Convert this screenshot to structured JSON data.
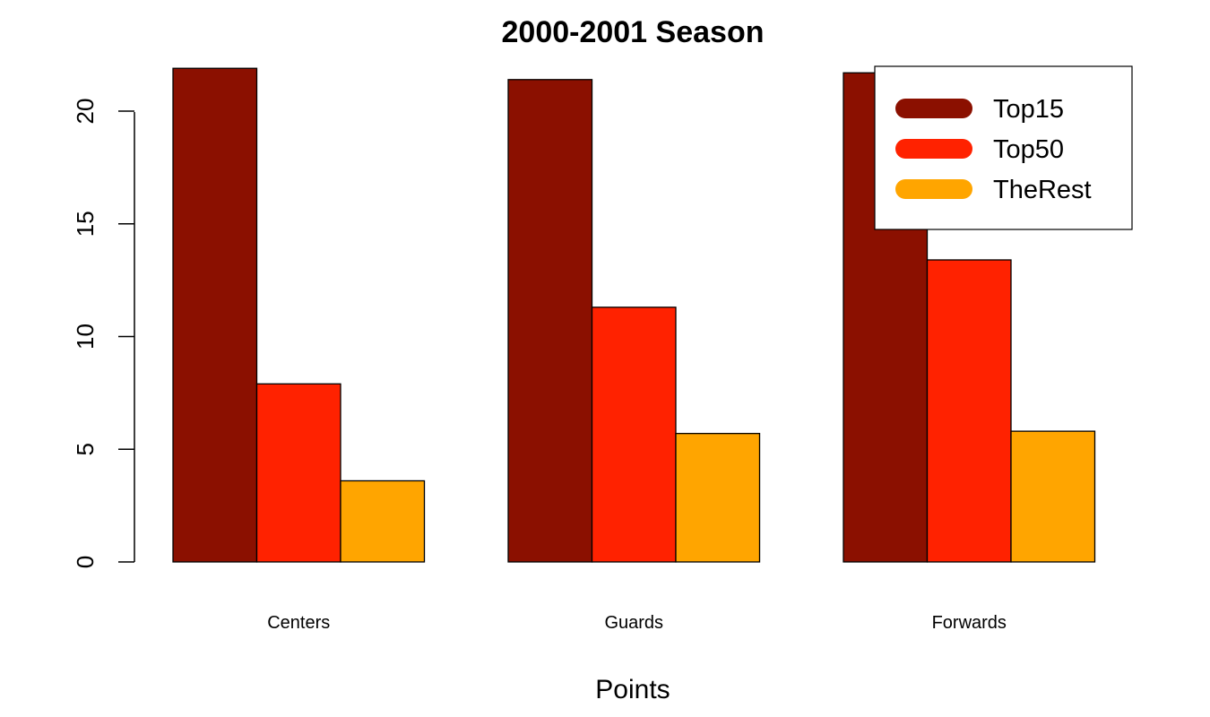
{
  "chart_data": {
    "type": "bar",
    "title": "2000-2001 Season",
    "xlabel": "Points",
    "ylabel": "",
    "categories": [
      "Centers",
      "Guards",
      "Forwards"
    ],
    "series": [
      {
        "name": "Top15",
        "color": "#8B1000",
        "values": [
          21.9,
          21.4,
          21.7
        ]
      },
      {
        "name": "Top50",
        "color": "#FF2200",
        "values": [
          7.9,
          11.3,
          13.4
        ]
      },
      {
        "name": "TheRest",
        "color": "#FFA500",
        "values": [
          3.6,
          5.7,
          5.8
        ]
      }
    ],
    "ylim": [
      0,
      22
    ],
    "yticks": [
      "0",
      "5",
      "10",
      "15",
      "20"
    ],
    "grid": false,
    "legend_position": "top-right"
  }
}
